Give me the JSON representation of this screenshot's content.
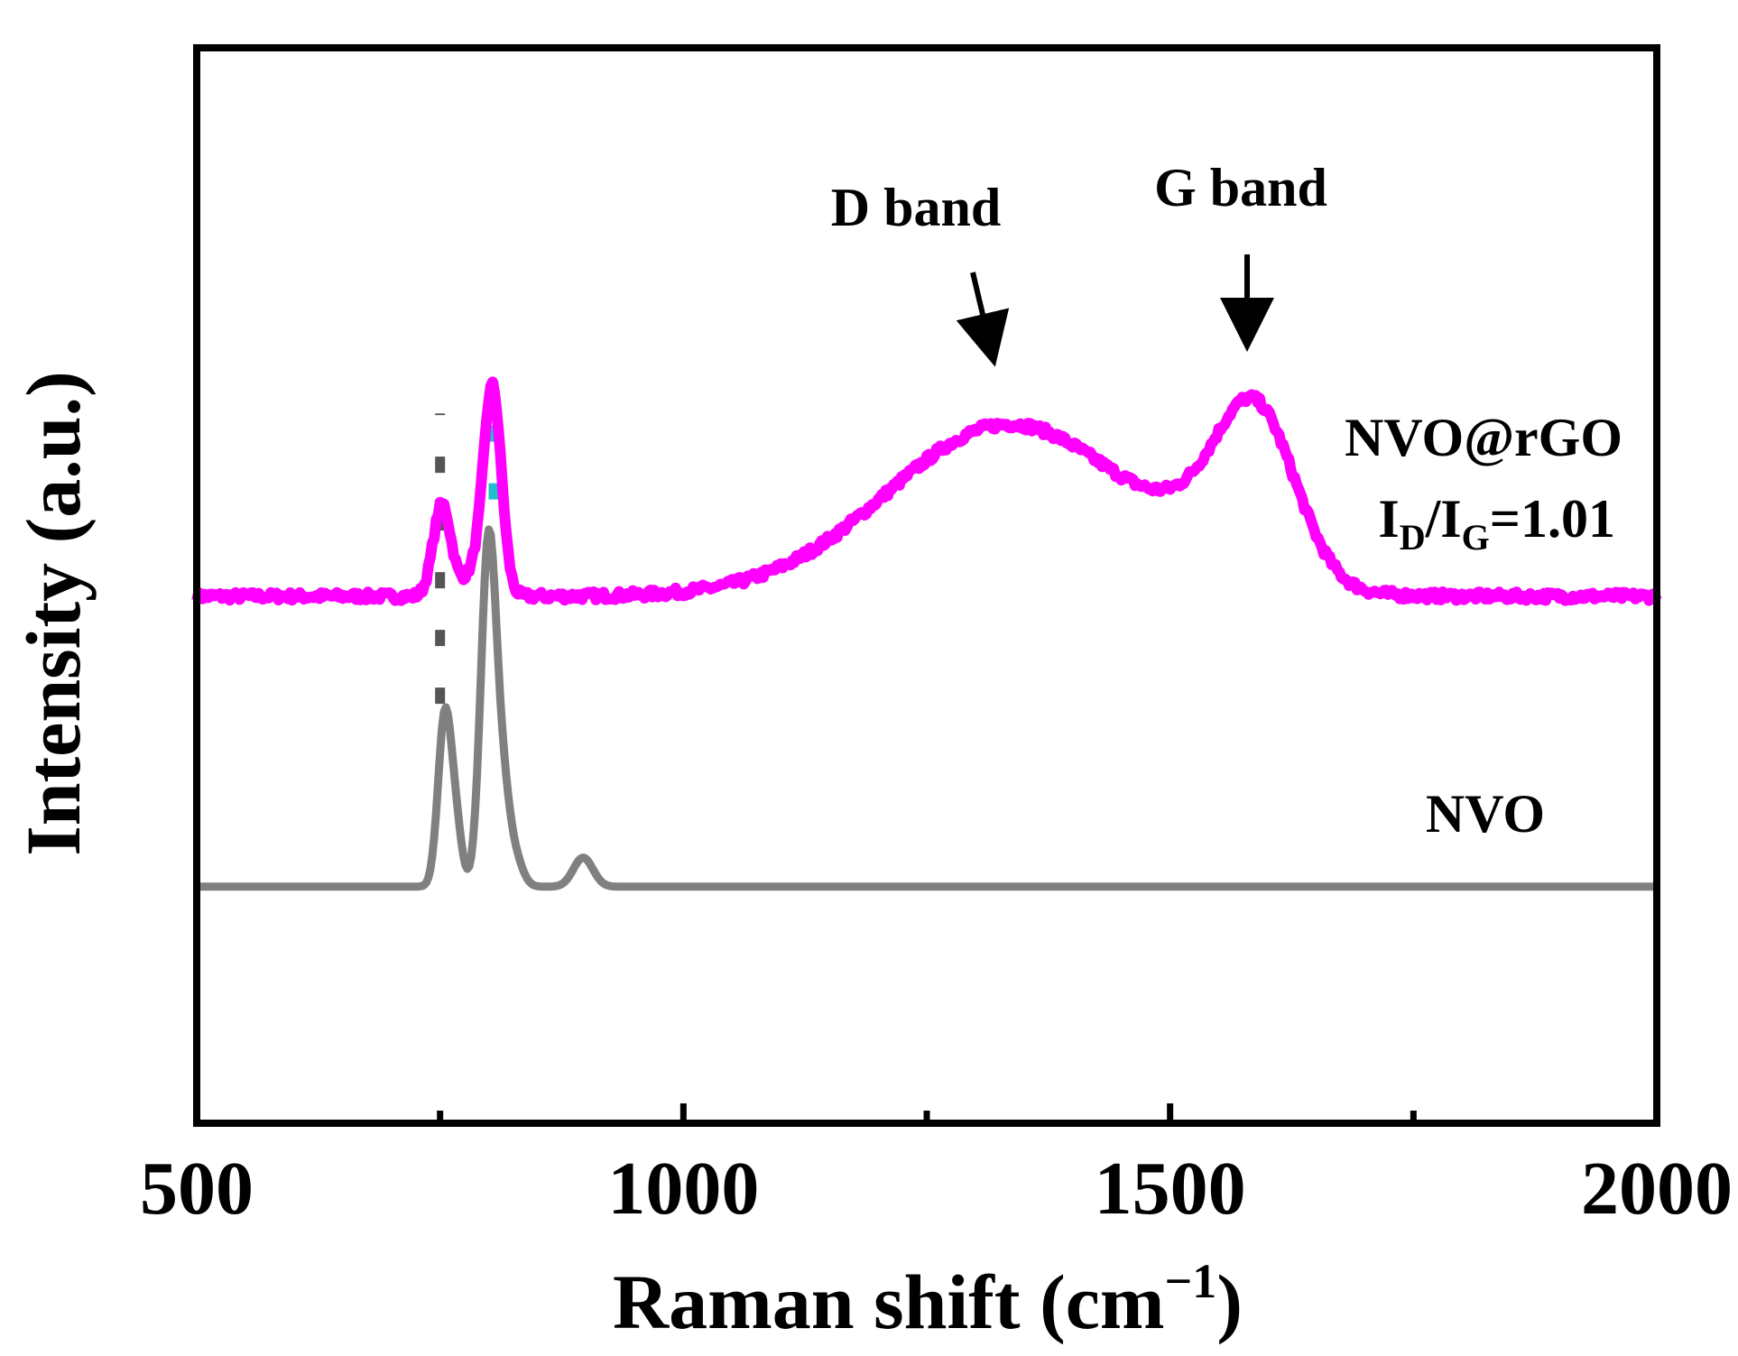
{
  "chart_data": {
    "type": "line",
    "title": "",
    "xlabel": "Raman shift (cm",
    "xlabel_sup": "−1",
    "xlabel_close": ")",
    "ylabel": "Intensity (a.u.)",
    "xlim": [
      500,
      2000
    ],
    "ylim": [
      0,
      10
    ],
    "x_ticks": [
      500,
      1000,
      1500,
      2000
    ],
    "x_tick_labels": [
      "500",
      "1000",
      "1500",
      "2000"
    ],
    "x_minor_ticks": [
      750,
      1250,
      1750
    ],
    "grid": false,
    "legend": "none",
    "series": [
      {
        "name": "NVO@rGO",
        "color": "#ff00ff",
        "label_lines": [
          "NVO@rGO"
        ],
        "ratio_label": {
          "main": "I",
          "sub1": "D",
          "mid": "/I",
          "sub2": "G",
          "value": "=1.01"
        },
        "baseline": 4.9,
        "peaks": [
          {
            "center": 752,
            "height": 0.85,
            "width": 9
          },
          {
            "center": 804,
            "height": 1.8,
            "width": 9
          },
          {
            "center": 790,
            "height": 0.25,
            "width": 15
          },
          {
            "center": 1335,
            "height": 1.6,
            "width": 125
          },
          {
            "center": 1590,
            "height": 1.35,
            "width": 40
          },
          {
            "center": 1550,
            "height": 0.35,
            "width": 55
          }
        ],
        "noise": 0.04
      },
      {
        "name": "NVO",
        "color": "#808080",
        "label_lines": [
          "NVO"
        ],
        "baseline": 2.2,
        "peaks": [
          {
            "center": 755,
            "height": 1.6,
            "width": 7
          },
          {
            "center": 767,
            "height": 0.45,
            "width": 6
          },
          {
            "center": 800,
            "height": 3.25,
            "width": 8
          },
          {
            "center": 815,
            "height": 0.7,
            "width": 7
          },
          {
            "center": 827,
            "height": 0.25,
            "width": 8
          },
          {
            "center": 897,
            "height": 0.27,
            "width": 10
          }
        ],
        "noise": 0
      }
    ],
    "reference_lines": [
      {
        "x": 750,
        "color": "#555555",
        "style": "dotted",
        "from": 3.9,
        "to": 6.6
      },
      {
        "x": 805,
        "color": "#1fbfcf",
        "style": "dotted",
        "from": 5.8,
        "to": 6.9
      }
    ],
    "annotations": [
      {
        "text": "D band",
        "arrow_to_x": 1330,
        "arrow_to_y": 6.8
      },
      {
        "text": "G band",
        "arrow_to_x": 1582,
        "arrow_to_y": 6.9
      }
    ]
  }
}
